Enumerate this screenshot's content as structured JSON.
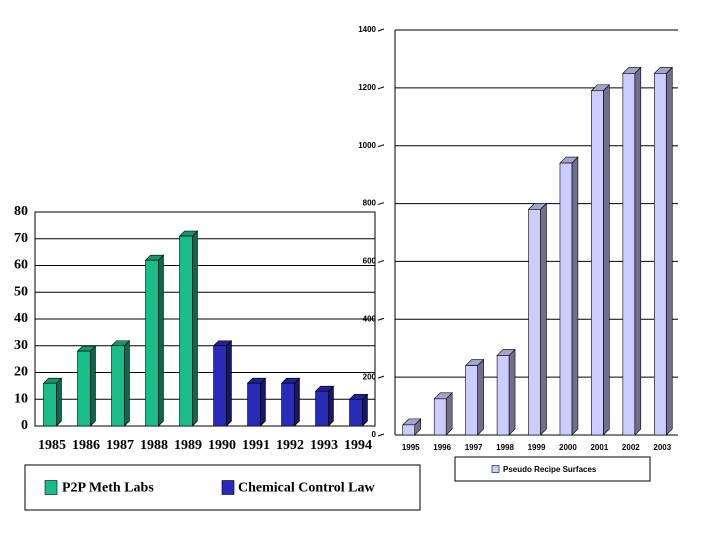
{
  "chart_data": [
    {
      "type": "bar",
      "categories": [
        "1985",
        "1986",
        "1987",
        "1988",
        "1989",
        "1990",
        "1991",
        "1992",
        "1993",
        "1994"
      ],
      "series": [
        {
          "name": "P2P Meth Labs",
          "color": "#1abc8a",
          "values": [
            16,
            28,
            30,
            62,
            71,
            null,
            null,
            null,
            null,
            null
          ]
        },
        {
          "name": "Chemical Control Law",
          "color": "#2a2ab8",
          "values": [
            null,
            null,
            null,
            null,
            null,
            30,
            16,
            16,
            13,
            10
          ]
        }
      ],
      "ylim": [
        0,
        80
      ],
      "yticks": [
        0,
        10,
        20,
        30,
        40,
        50,
        60,
        70,
        80
      ],
      "grid": true
    },
    {
      "type": "bar",
      "categories": [
        "1995",
        "1996",
        "1997",
        "1998",
        "1999",
        "2000",
        "2001",
        "2002",
        "2003"
      ],
      "series": [
        {
          "name": "Pseudo Recipe Surfaces",
          "color": "#ccccff",
          "values": [
            35,
            125,
            240,
            275,
            780,
            940,
            1190,
            1250,
            1250
          ]
        }
      ],
      "ylim": [
        0,
        1400
      ],
      "yticks": [
        0,
        200,
        400,
        600,
        800,
        1000,
        1200,
        1400
      ],
      "grid": true
    }
  ]
}
